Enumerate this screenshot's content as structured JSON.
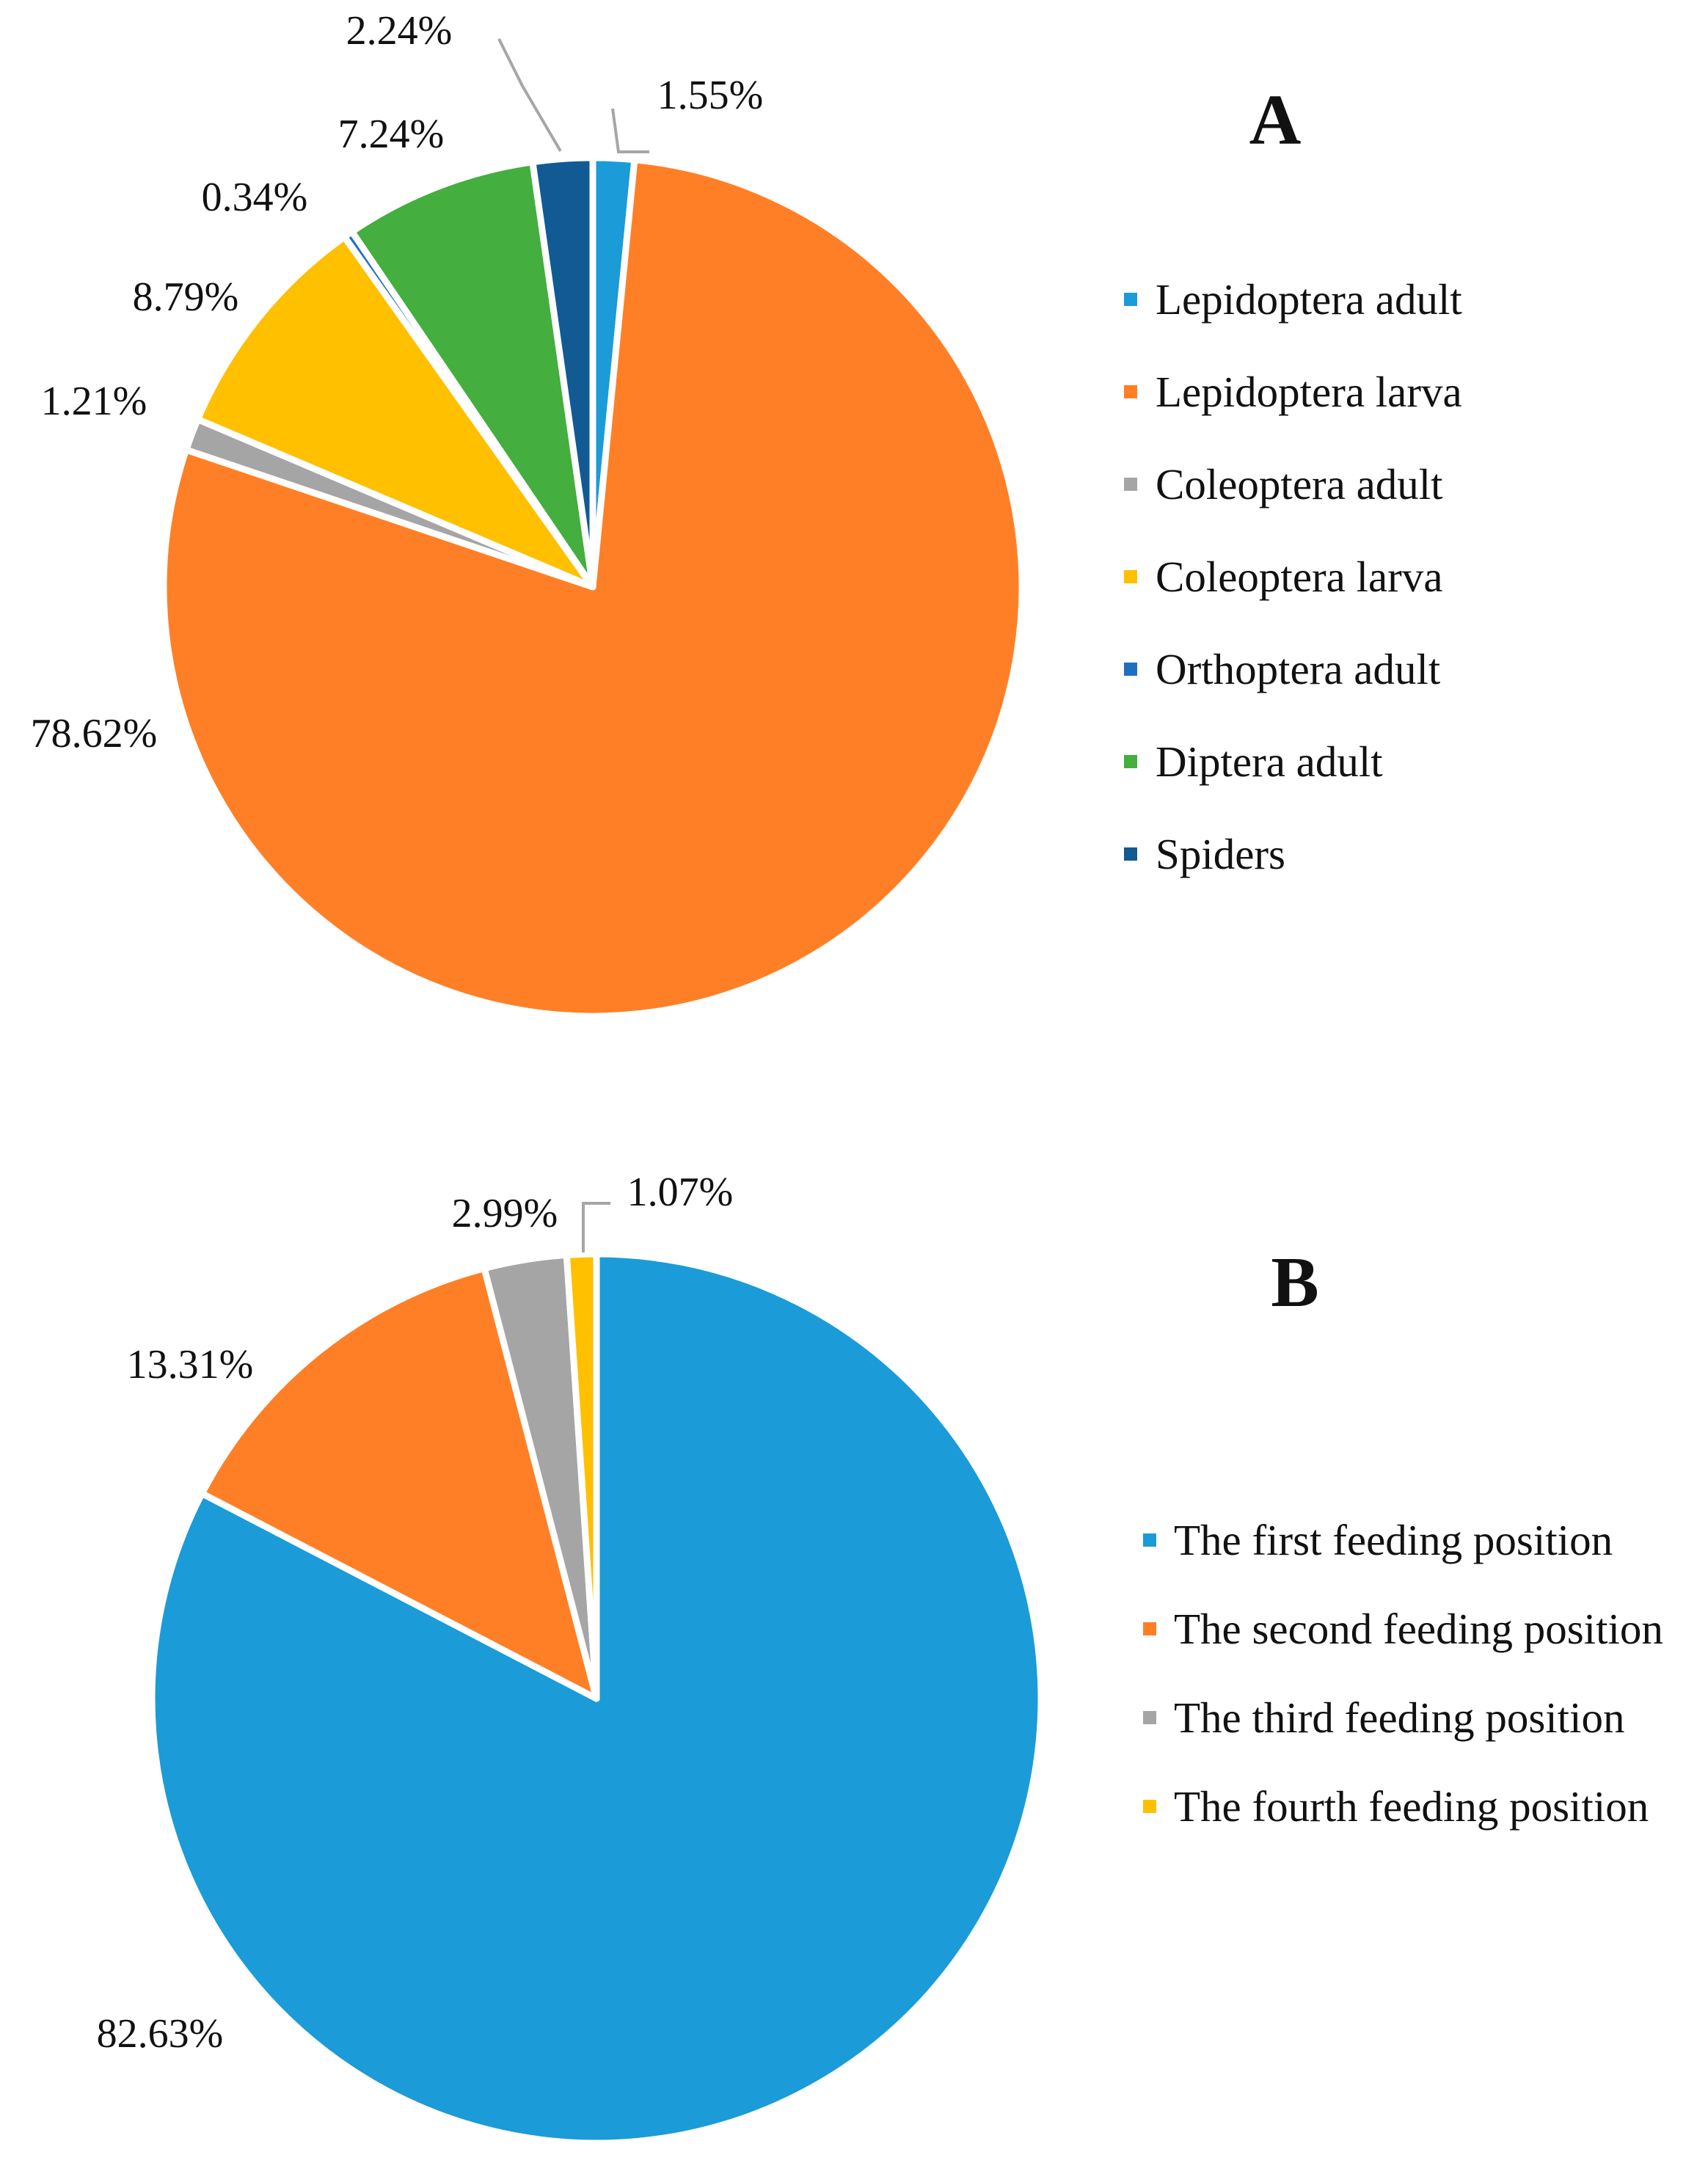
{
  "chart_data": [
    {
      "type": "pie",
      "panel_label": "A",
      "start_angle_deg": 0,
      "direction": "clockwise",
      "slices": [
        {
          "name": "Lepidoptera adult",
          "value": 1.55,
          "label": "1.55%",
          "color": "#1B9BD7"
        },
        {
          "name": "Lepidoptera larva",
          "value": 78.62,
          "label": "78.62%",
          "color": "#FF7F27"
        },
        {
          "name": "Coleoptera adult",
          "value": 1.21,
          "label": "1.21%",
          "color": "#A5A5A5"
        },
        {
          "name": "Coleoptera larva",
          "value": 8.79,
          "label": "8.79%",
          "color": "#FFC000"
        },
        {
          "name": "Orthoptera adult",
          "value": 0.34,
          "label": "0.34%",
          "color": "#1F6FC0"
        },
        {
          "name": "Diptera adult",
          "value": 7.24,
          "label": "7.24%",
          "color": "#44AE3E"
        },
        {
          "name": "Spiders",
          "value": 2.24,
          "label": "2.24%",
          "color": "#125A94"
        }
      ],
      "legend": {
        "position": "right"
      }
    },
    {
      "type": "pie",
      "panel_label": "B",
      "start_angle_deg": 0,
      "direction": "clockwise",
      "slices": [
        {
          "name": "The first feeding position",
          "value": 82.63,
          "label": "82.63%",
          "color": "#1B9BD7"
        },
        {
          "name": "The second feeding position",
          "value": 13.31,
          "label": "13.31%",
          "color": "#FF7F27"
        },
        {
          "name": "The third feeding position",
          "value": 2.99,
          "label": "2.99%",
          "color": "#A5A5A5"
        },
        {
          "name": "The fourth feeding position",
          "value": 1.07,
          "label": "1.07%",
          "color": "#FFC000"
        }
      ],
      "legend": {
        "position": "right"
      }
    }
  ]
}
